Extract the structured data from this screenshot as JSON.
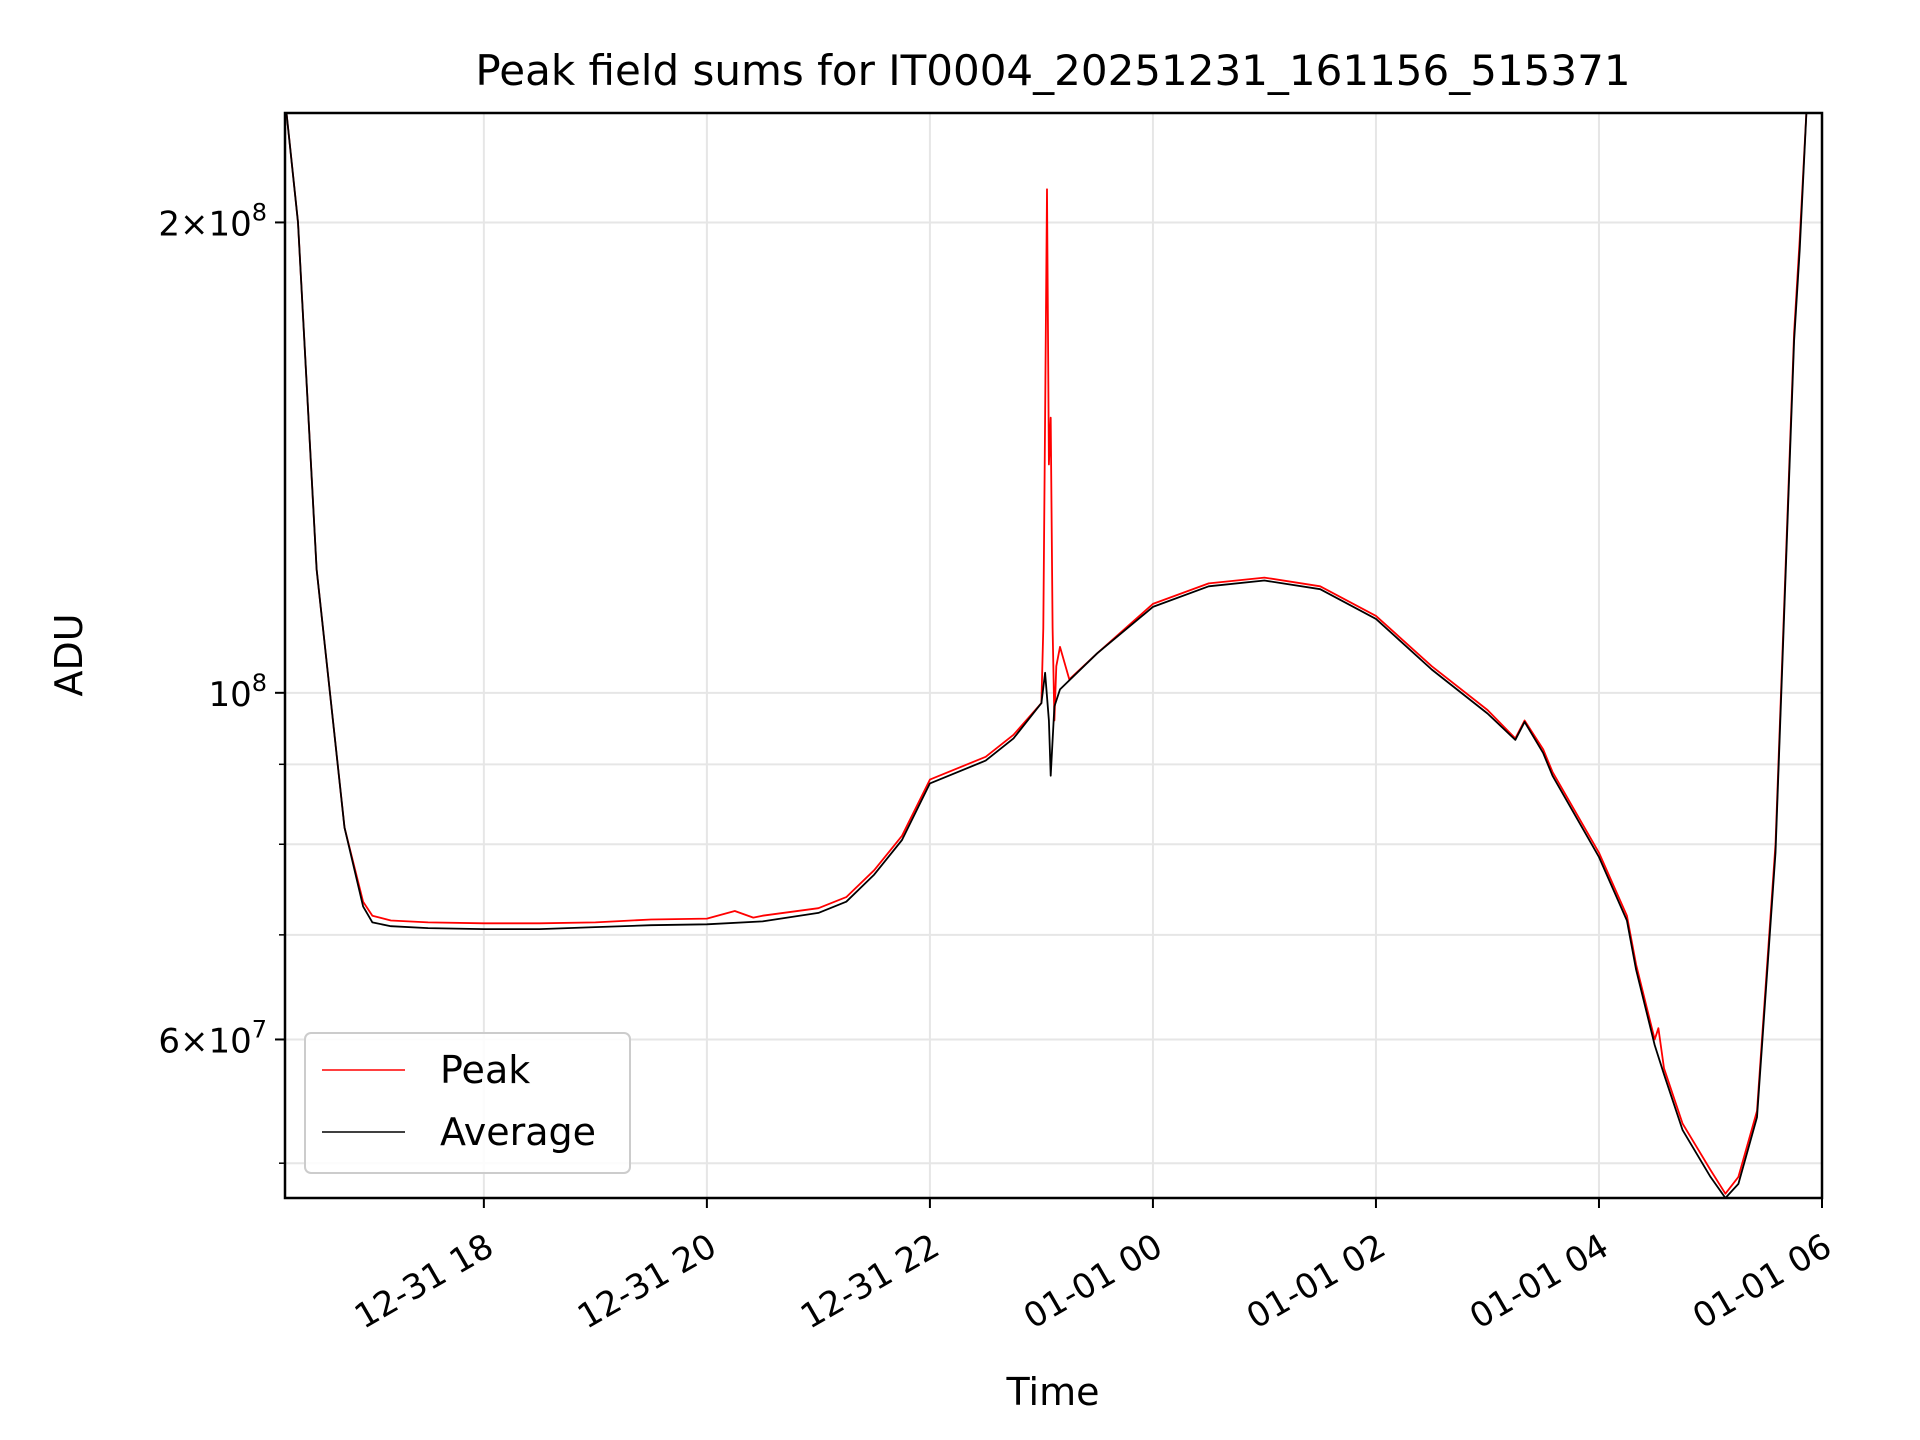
{
  "chart_data": {
    "type": "line",
    "title": "Peak field sums for IT0004_20251231_161156_515371",
    "xlabel": "Time",
    "ylabel": "ADU",
    "x_axis": {
      "scale": "time",
      "range": [
        "2025-12-31 16:13",
        "2026-01-01 06:00"
      ]
    },
    "y_axis": {
      "scale": "log",
      "range": [
        47500000,
        235000000
      ]
    },
    "x_ticks": [
      {
        "value": "2025-12-31 18:00",
        "label": "12-31 18"
      },
      {
        "value": "2025-12-31 20:00",
        "label": "12-31 20"
      },
      {
        "value": "2025-12-31 22:00",
        "label": "12-31 22"
      },
      {
        "value": "2026-01-01 00:00",
        "label": "01-01 00"
      },
      {
        "value": "2026-01-01 02:00",
        "label": "01-01 02"
      },
      {
        "value": "2026-01-01 04:00",
        "label": "01-01 04"
      },
      {
        "value": "2026-01-01 06:00",
        "label": "01-01 06"
      }
    ],
    "y_major_ticks": [
      {
        "value": 60000000,
        "mantissa": "6",
        "exponent": "7"
      },
      {
        "value": 100000000,
        "mantissa": "",
        "exponent": "8"
      },
      {
        "value": 200000000,
        "mantissa": "2",
        "exponent": "8"
      }
    ],
    "y_minor_ticks": [
      50000000,
      70000000,
      80000000,
      90000000
    ],
    "grid": true,
    "legend_position": "lower left",
    "series": [
      {
        "name": "Peak",
        "color": "#ff0000",
        "points": [
          [
            "2025-12-31 16:13",
            240000000
          ],
          [
            "2025-12-31 16:20",
            200000000
          ],
          [
            "2025-12-31 16:30",
            120000000
          ],
          [
            "2025-12-31 16:45",
            82000000
          ],
          [
            "2025-12-31 16:55",
            73500000
          ],
          [
            "2025-12-31 17:00",
            72000000
          ],
          [
            "2025-12-31 17:10",
            71500000
          ],
          [
            "2025-12-31 17:30",
            71300000
          ],
          [
            "2025-12-31 18:00",
            71200000
          ],
          [
            "2025-12-31 18:30",
            71200000
          ],
          [
            "2025-12-31 19:00",
            71300000
          ],
          [
            "2025-12-31 19:30",
            71600000
          ],
          [
            "2025-12-31 20:00",
            71700000
          ],
          [
            "2025-12-31 20:15",
            72500000
          ],
          [
            "2025-12-31 20:25",
            71800000
          ],
          [
            "2025-12-31 20:30",
            72000000
          ],
          [
            "2025-12-31 21:00",
            72800000
          ],
          [
            "2025-12-31 21:15",
            74000000
          ],
          [
            "2025-12-31 21:30",
            77000000
          ],
          [
            "2025-12-31 21:45",
            81000000
          ],
          [
            "2025-12-31 22:00",
            88000000
          ],
          [
            "2025-12-31 22:30",
            91000000
          ],
          [
            "2025-12-31 22:45",
            94000000
          ],
          [
            "2025-12-31 23:00",
            98500000
          ],
          [
            "2025-12-31 23:01",
            110000000
          ],
          [
            "2025-12-31 23:02",
            150000000
          ],
          [
            "2025-12-31 23:03",
            210000000
          ],
          [
            "2025-12-31 23:04",
            140000000
          ],
          [
            "2025-12-31 23:05",
            150000000
          ],
          [
            "2025-12-31 23:06",
            110000000
          ],
          [
            "2025-12-31 23:07",
            96000000
          ],
          [
            "2025-12-31 23:08",
            104000000
          ],
          [
            "2025-12-31 23:10",
            107000000
          ],
          [
            "2025-12-31 23:15",
            102000000
          ],
          [
            "2025-12-31 23:30",
            106000000
          ],
          [
            "2026-01-01 00:00",
            114000000
          ],
          [
            "2026-01-01 00:30",
            117500000
          ],
          [
            "2026-01-01 01:00",
            118500000
          ],
          [
            "2026-01-01 01:30",
            117000000
          ],
          [
            "2026-01-01 02:00",
            112000000
          ],
          [
            "2026-01-01 02:30",
            104000000
          ],
          [
            "2026-01-01 03:00",
            97500000
          ],
          [
            "2026-01-01 03:15",
            93500000
          ],
          [
            "2026-01-01 03:20",
            96000000
          ],
          [
            "2026-01-01 03:30",
            92000000
          ],
          [
            "2026-01-01 03:35",
            89000000
          ],
          [
            "2026-01-01 04:00",
            79000000
          ],
          [
            "2026-01-01 04:15",
            72000000
          ],
          [
            "2026-01-01 04:20",
            67000000
          ],
          [
            "2026-01-01 04:30",
            60000000
          ],
          [
            "2026-01-01 04:32",
            61000000
          ],
          [
            "2026-01-01 04:35",
            57500000
          ],
          [
            "2026-01-01 04:45",
            53000000
          ],
          [
            "2026-01-01 05:00",
            49500000
          ],
          [
            "2026-01-01 05:08",
            47800000
          ],
          [
            "2026-01-01 05:15",
            49000000
          ],
          [
            "2026-01-01 05:25",
            54000000
          ],
          [
            "2026-01-01 05:35",
            80000000
          ],
          [
            "2026-01-01 05:45",
            170000000
          ],
          [
            "2026-01-01 05:48",
            195000000
          ],
          [
            "2026-01-01 05:52",
            240000000
          ]
        ]
      },
      {
        "name": "Average",
        "color": "#000000",
        "points": [
          [
            "2025-12-31 16:13",
            240000000
          ],
          [
            "2025-12-31 16:20",
            200000000
          ],
          [
            "2025-12-31 16:30",
            120000000
          ],
          [
            "2025-12-31 16:45",
            82000000
          ],
          [
            "2025-12-31 16:55",
            73000000
          ],
          [
            "2025-12-31 17:00",
            71300000
          ],
          [
            "2025-12-31 17:10",
            70900000
          ],
          [
            "2025-12-31 17:30",
            70700000
          ],
          [
            "2025-12-31 18:00",
            70600000
          ],
          [
            "2025-12-31 18:30",
            70600000
          ],
          [
            "2025-12-31 19:00",
            70800000
          ],
          [
            "2025-12-31 19:30",
            71000000
          ],
          [
            "2025-12-31 20:00",
            71100000
          ],
          [
            "2025-12-31 20:30",
            71400000
          ],
          [
            "2025-12-31 21:00",
            72300000
          ],
          [
            "2025-12-31 21:15",
            73500000
          ],
          [
            "2025-12-31 21:30",
            76500000
          ],
          [
            "2025-12-31 21:45",
            80500000
          ],
          [
            "2025-12-31 22:00",
            87500000
          ],
          [
            "2025-12-31 22:30",
            90500000
          ],
          [
            "2025-12-31 22:45",
            93500000
          ],
          [
            "2025-12-31 23:00",
            98500000
          ],
          [
            "2025-12-31 23:02",
            103000000
          ],
          [
            "2025-12-31 23:04",
            96000000
          ],
          [
            "2025-12-31 23:05",
            88500000
          ],
          [
            "2025-12-31 23:07",
            98000000
          ],
          [
            "2025-12-31 23:10",
            100500000
          ],
          [
            "2025-12-31 23:30",
            106000000
          ],
          [
            "2026-01-01 00:00",
            113500000
          ],
          [
            "2026-01-01 00:30",
            117000000
          ],
          [
            "2026-01-01 01:00",
            118000000
          ],
          [
            "2026-01-01 01:30",
            116500000
          ],
          [
            "2026-01-01 02:00",
            111500000
          ],
          [
            "2026-01-01 02:30",
            103500000
          ],
          [
            "2026-01-01 03:00",
            97000000
          ],
          [
            "2026-01-01 03:15",
            93300000
          ],
          [
            "2026-01-01 03:20",
            95800000
          ],
          [
            "2026-01-01 03:30",
            91500000
          ],
          [
            "2026-01-01 03:35",
            88500000
          ],
          [
            "2026-01-01 04:00",
            78500000
          ],
          [
            "2026-01-01 04:15",
            71500000
          ],
          [
            "2026-01-01 04:20",
            66500000
          ],
          [
            "2026-01-01 04:30",
            59500000
          ],
          [
            "2026-01-01 04:35",
            57000000
          ],
          [
            "2026-01-01 04:45",
            52500000
          ],
          [
            "2026-01-01 05:00",
            49000000
          ],
          [
            "2026-01-01 05:08",
            47500000
          ],
          [
            "2026-01-01 05:15",
            48500000
          ],
          [
            "2026-01-01 05:25",
            53500000
          ],
          [
            "2026-01-01 05:35",
            79000000
          ],
          [
            "2026-01-01 05:45",
            168000000
          ],
          [
            "2026-01-01 05:48",
            192000000
          ],
          [
            "2026-01-01 05:52",
            240000000
          ]
        ]
      }
    ]
  }
}
